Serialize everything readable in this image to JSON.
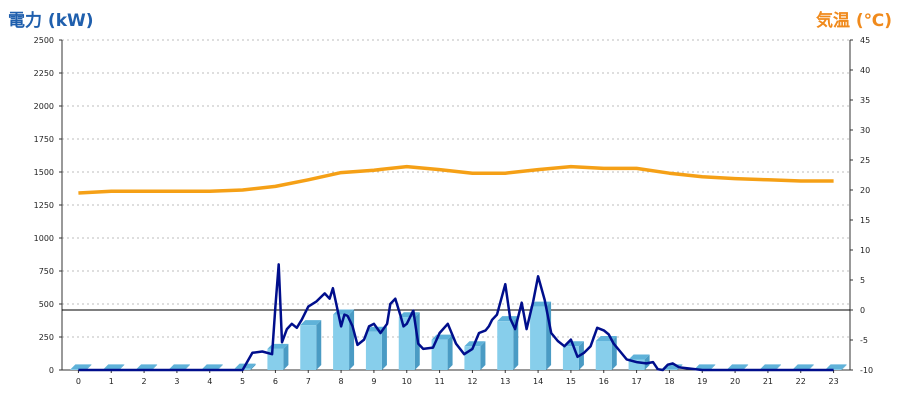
{
  "chart_data": {
    "type": "bar",
    "left_title": "電力 (kW)",
    "right_title": "気温 (℃)",
    "categories": [
      "0",
      "1",
      "2",
      "3",
      "4",
      "5",
      "6",
      "7",
      "8",
      "9",
      "10",
      "11",
      "12",
      "13",
      "14",
      "15",
      "16",
      "17",
      "18",
      "19",
      "20",
      "21",
      "22",
      "23"
    ],
    "y_left_ticks": [
      "0",
      "250",
      "500",
      "750",
      "1000",
      "1250",
      "1500",
      "1750",
      "2000",
      "2250",
      "2500"
    ],
    "y_right_ticks": [
      "-10",
      "-5",
      "0",
      "5",
      "10",
      "15",
      "20",
      "25",
      "30",
      "35",
      "40",
      "45"
    ],
    "y_left_range": [
      0,
      2500
    ],
    "y_right_range": [
      -10,
      45
    ],
    "reference_line_temp": 0,
    "grid": true,
    "colors": {
      "bar": "#87ceeb",
      "bar_side": "#4a9bc4",
      "power_line": "#000e8c",
      "temp_line": "#f5a016",
      "left_title": "#1f5fad",
      "right_title": "#f08a1c"
    },
    "series": [
      {
        "kind": "bar",
        "values": [
          5,
          5,
          5,
          5,
          5,
          10,
          160,
          340,
          420,
          290,
          400,
          230,
          180,
          370,
          480,
          180,
          220,
          80,
          5,
          5,
          5,
          5,
          5,
          5
        ]
      },
      {
        "kind": "temp_line",
        "x": [
          0,
          1,
          2,
          3,
          4,
          5,
          6,
          7,
          8,
          9,
          10,
          11,
          12,
          13,
          14,
          15,
          16,
          17,
          18,
          19,
          20,
          21,
          22,
          23
        ],
        "values": [
          19.5,
          19.8,
          19.8,
          19.8,
          19.8,
          20.0,
          20.6,
          21.7,
          22.9,
          23.3,
          23.9,
          23.4,
          22.8,
          22.8,
          23.4,
          23.9,
          23.6,
          23.6,
          22.8,
          22.2,
          21.9,
          21.7,
          21.5,
          21.5
        ]
      },
      {
        "kind": "power_line",
        "x": [
          0,
          1,
          2,
          3,
          4,
          5,
          5.3,
          5.6,
          5.9,
          6.0,
          6.1,
          6.2,
          6.35,
          6.5,
          6.65,
          6.8,
          7.0,
          7.25,
          7.5,
          7.65,
          7.75,
          8.0,
          8.1,
          8.2,
          8.35,
          8.5,
          8.7,
          8.85,
          9.0,
          9.2,
          9.4,
          9.5,
          9.65,
          9.8,
          9.9,
          10.0,
          10.2,
          10.35,
          10.5,
          10.8,
          11.0,
          11.25,
          11.5,
          11.75,
          12.0,
          12.2,
          12.4,
          12.5,
          12.6,
          12.75,
          13.0,
          13.15,
          13.3,
          13.5,
          13.65,
          13.85,
          14.0,
          14.2,
          14.4,
          14.6,
          14.8,
          15.0,
          15.2,
          15.4,
          15.6,
          15.8,
          16.0,
          16.15,
          16.3,
          16.5,
          16.7,
          17.0,
          17.3,
          17.5,
          17.65,
          17.8,
          17.95,
          18.1,
          18.3,
          19,
          20,
          21,
          22,
          23
        ],
        "values": [
          0,
          0,
          0,
          0,
          0,
          0,
          130,
          140,
          120,
          480,
          800,
          210,
          310,
          350,
          320,
          380,
          480,
          520,
          580,
          540,
          620,
          330,
          420,
          410,
          330,
          190,
          230,
          330,
          350,
          280,
          350,
          500,
          540,
          420,
          330,
          350,
          450,
          200,
          160,
          170,
          280,
          350,
          200,
          120,
          160,
          280,
          300,
          330,
          380,
          420,
          650,
          390,
          310,
          510,
          310,
          520,
          710,
          530,
          280,
          220,
          180,
          230,
          100,
          130,
          180,
          320,
          300,
          270,
          200,
          140,
          80,
          60,
          50,
          60,
          5,
          0,
          40,
          50,
          20,
          0,
          0,
          0,
          0,
          0
        ]
      }
    ]
  }
}
